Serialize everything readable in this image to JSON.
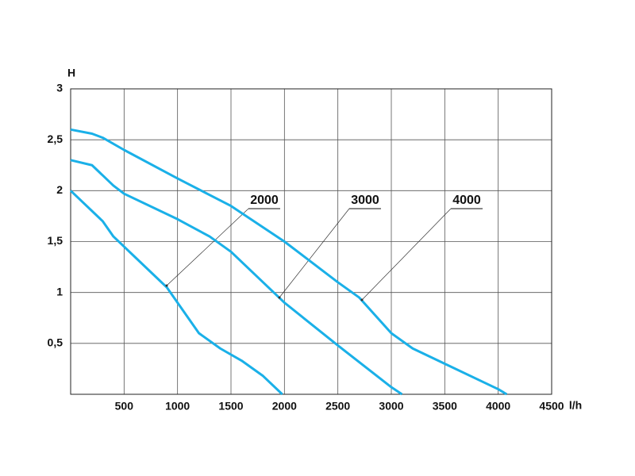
{
  "chart_data": {
    "type": "line",
    "y_label": "H",
    "x_label": "l/h",
    "xlim": [
      0,
      4500
    ],
    "ylim": [
      0,
      3
    ],
    "xticks": [
      500,
      1000,
      1500,
      2000,
      2500,
      3000,
      3500,
      4000,
      4500
    ],
    "yticks": [
      {
        "value": 0.5,
        "label": "0,5"
      },
      1,
      {
        "value": 1.5,
        "label": "1,5"
      },
      2,
      {
        "value": 2.5,
        "label": "2,5"
      },
      3
    ],
    "grid": true,
    "series": [
      {
        "name": "2000",
        "color": "#1ab0e8",
        "x": [
          0,
          300,
          400,
          600,
          900,
          1000,
          1200,
          1400,
          1600,
          1800,
          1980
        ],
        "values": [
          2.0,
          1.7,
          1.55,
          1.35,
          1.05,
          0.9,
          0.6,
          0.45,
          0.33,
          0.18,
          0
        ]
      },
      {
        "name": "3000",
        "color": "#1ab0e8",
        "x": [
          0,
          200,
          300,
          400,
          500,
          1000,
          1300,
          1500,
          1800,
          2000,
          2500,
          3000,
          3100
        ],
        "values": [
          2.3,
          2.25,
          2.15,
          2.05,
          1.97,
          1.72,
          1.55,
          1.4,
          1.1,
          0.9,
          0.48,
          0.07,
          0
        ]
      },
      {
        "name": "4000",
        "color": "#1ab0e8",
        "x": [
          0,
          200,
          300,
          500,
          1000,
          1500,
          2000,
          2500,
          2700,
          3000,
          3200,
          3500,
          4000,
          4080
        ],
        "values": [
          2.6,
          2.56,
          2.52,
          2.4,
          2.12,
          1.85,
          1.5,
          1.1,
          0.95,
          0.6,
          0.45,
          0.3,
          0.05,
          0
        ]
      }
    ]
  }
}
